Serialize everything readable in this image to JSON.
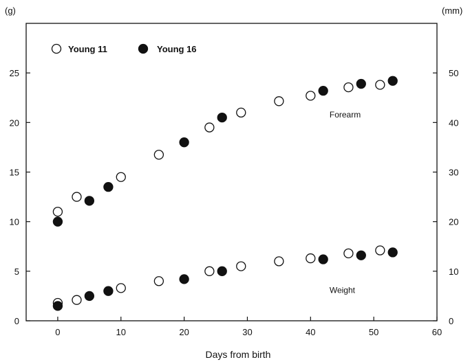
{
  "chart_data": {
    "type": "scatter",
    "xlabel": "Days from birth",
    "ylabel_left": "(g)",
    "ylabel_right": "(mm)",
    "xlim": [
      -5,
      60
    ],
    "ylim_left": [
      0,
      30
    ],
    "ylim_right": [
      0,
      60
    ],
    "x_ticks": [
      0,
      10,
      20,
      30,
      40,
      50,
      60
    ],
    "y_left_ticks": [
      0,
      5,
      10,
      15,
      20,
      25
    ],
    "y_right_ticks": [
      0,
      10,
      20,
      30,
      40,
      50
    ],
    "grid": false,
    "legend": {
      "position": "top-left",
      "entries": [
        {
          "label": "Young 11",
          "marker": "open-circle"
        },
        {
          "label": "Young 16",
          "marker": "filled-circle"
        }
      ]
    },
    "annotations": [
      {
        "text": "Forearm",
        "x": 43,
        "y_left": 20.5
      },
      {
        "text": "Weight",
        "x": 43,
        "y_left": 2.8
      }
    ],
    "series": [
      {
        "name": "Young 11",
        "measure": "Forearm",
        "axis": "right",
        "marker": "open",
        "x": [
          0,
          3,
          10,
          16,
          24,
          29,
          35,
          40,
          46,
          51
        ],
        "y": [
          22.0,
          25.0,
          29.0,
          33.5,
          39.0,
          42.0,
          44.3,
          45.4,
          47.1,
          47.6
        ]
      },
      {
        "name": "Young 16",
        "measure": "Forearm",
        "axis": "right",
        "marker": "filled",
        "x": [
          0,
          5,
          8,
          20,
          26,
          42,
          48,
          53
        ],
        "y": [
          20.0,
          24.2,
          27.0,
          36.0,
          41.0,
          46.4,
          47.8,
          48.4
        ]
      },
      {
        "name": "Young 11",
        "measure": "Weight",
        "axis": "left",
        "marker": "open",
        "x": [
          0,
          3,
          10,
          16,
          24,
          29,
          35,
          40,
          46,
          51
        ],
        "y": [
          1.8,
          2.1,
          3.3,
          4.0,
          5.0,
          5.5,
          6.0,
          6.3,
          6.8,
          7.1
        ]
      },
      {
        "name": "Young 16",
        "measure": "Weight",
        "axis": "left",
        "marker": "filled",
        "x": [
          0,
          5,
          8,
          20,
          26,
          42,
          48,
          53
        ],
        "y": [
          1.5,
          2.5,
          3.0,
          4.2,
          5.0,
          6.2,
          6.6,
          6.9
        ]
      }
    ]
  }
}
